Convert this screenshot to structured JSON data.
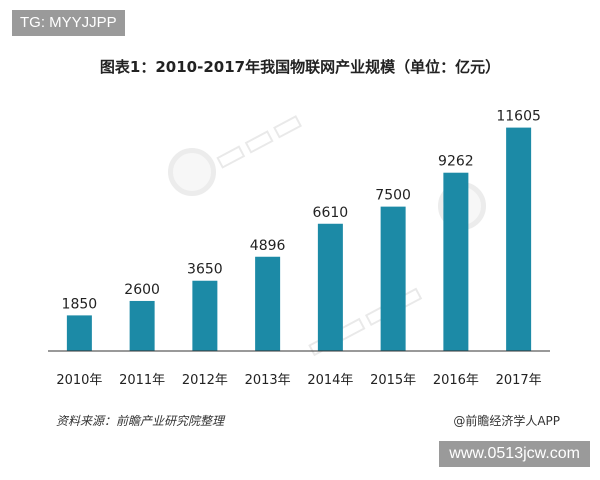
{
  "tag": "TG: MYYJJPP",
  "site": "www.0513jcw.com",
  "source": "资料来源：前瞻产业研究院整理",
  "brand": "@前瞻经济学人APP",
  "colors": {
    "bar": "#1c8aa6",
    "axis": "#333333",
    "text": "#222222"
  },
  "chart_data": {
    "type": "bar",
    "title": "图表1：2010-2017年我国物联网产业规模（单位：亿元）",
    "categories": [
      "2010年",
      "2011年",
      "2012年",
      "2013年",
      "2014年",
      "2015年",
      "2016年",
      "2017年"
    ],
    "values": [
      1850,
      2600,
      3650,
      4896,
      6610,
      7500,
      9262,
      11605
    ],
    "ylim": [
      0,
      12000
    ],
    "grid": false,
    "legend": "none"
  }
}
